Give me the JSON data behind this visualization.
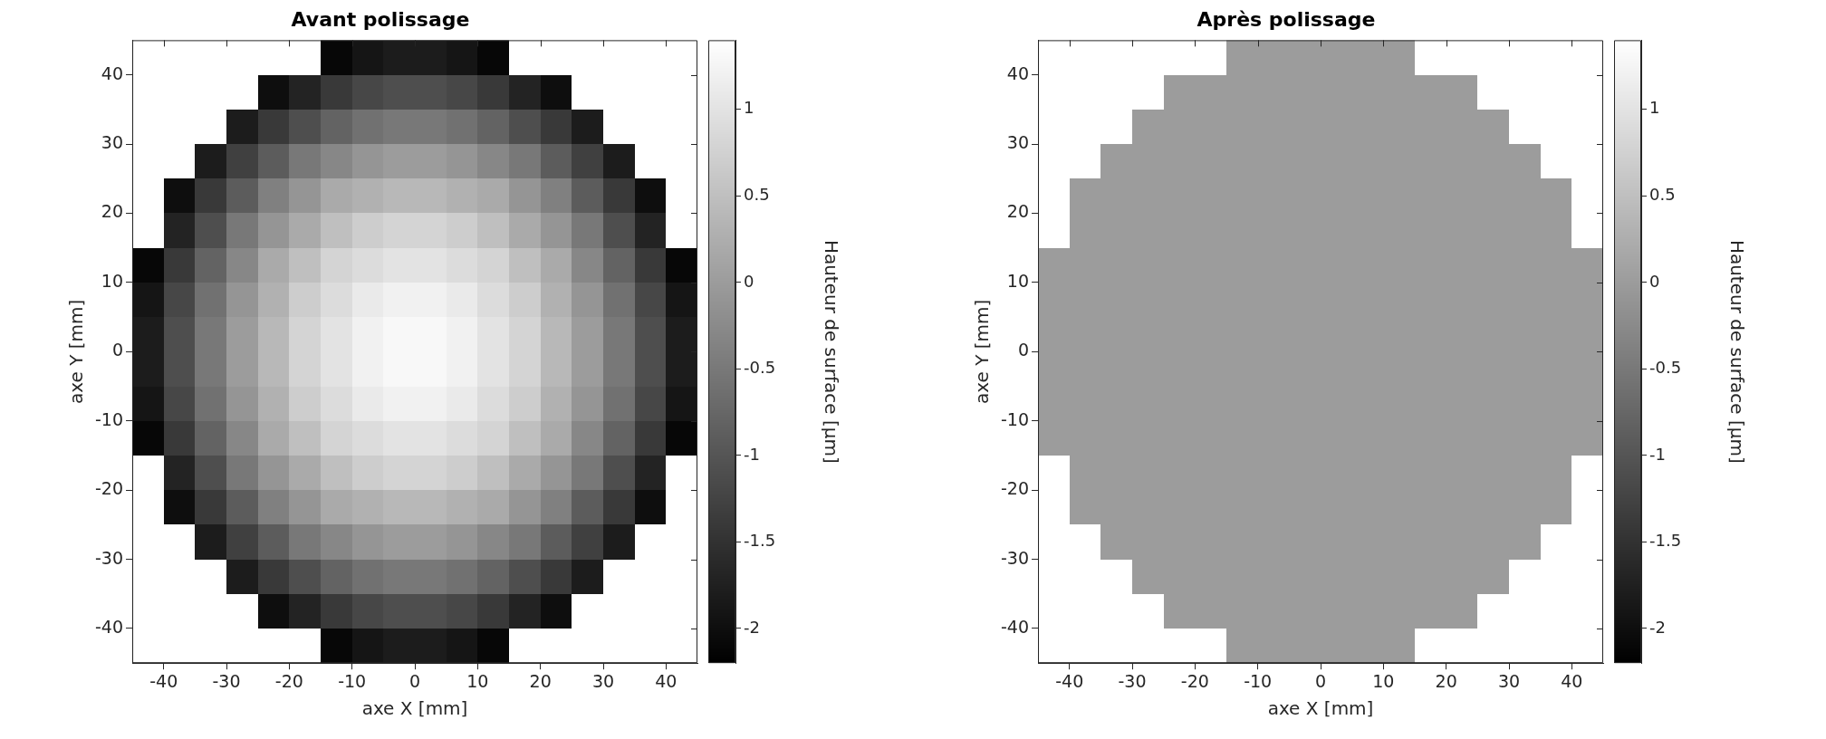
{
  "chart_data": [
    {
      "type": "heatmap",
      "title": "Avant polissage",
      "xlabel": "axe X [mm]",
      "ylabel": "axe Y [mm]",
      "clabel": "Hauteur de surface [µm]",
      "x": [
        -42.5,
        -37.5,
        -32.5,
        -27.5,
        -22.5,
        -17.5,
        -12.5,
        -7.5,
        -2.5,
        2.5,
        7.5,
        12.5,
        17.5,
        22.5,
        27.5,
        32.5,
        37.5,
        42.5
      ],
      "y": [
        42.5,
        37.5,
        32.5,
        27.5,
        22.5,
        17.5,
        12.5,
        7.5,
        2.5,
        -2.5,
        -7.5,
        -12.5,
        -17.5,
        -22.5,
        -27.5,
        -32.5,
        -37.5,
        -42.5
      ],
      "cells": [
        [
          null,
          null,
          null,
          null,
          null,
          null,
          -2.1,
          -1.9,
          -1.8,
          -1.8,
          -1.9,
          -2.1,
          null,
          null,
          null,
          null,
          null,
          null
        ],
        [
          null,
          null,
          null,
          null,
          -2.0,
          -1.7,
          -1.4,
          -1.2,
          -1.1,
          -1.1,
          -1.2,
          -1.4,
          -1.7,
          -2.0,
          null,
          null,
          null,
          null
        ],
        [
          null,
          null,
          null,
          -1.8,
          -1.4,
          -1.1,
          -0.8,
          -0.6,
          -0.5,
          -0.5,
          -0.6,
          -0.8,
          -1.1,
          -1.4,
          -1.8,
          null,
          null,
          null
        ],
        [
          null,
          null,
          -1.8,
          -1.3,
          -0.9,
          -0.5,
          -0.3,
          -0.1,
          0.0,
          0.0,
          -0.1,
          -0.3,
          -0.5,
          -0.9,
          -1.3,
          -1.8,
          null,
          null
        ],
        [
          null,
          -2.0,
          -1.4,
          -0.9,
          -0.4,
          -0.1,
          0.2,
          0.3,
          0.4,
          0.4,
          0.3,
          0.2,
          -0.1,
          -0.4,
          -0.9,
          -1.4,
          -2.0,
          null
        ],
        [
          null,
          -1.7,
          -1.1,
          -0.5,
          -0.1,
          0.2,
          0.5,
          0.7,
          0.8,
          0.8,
          0.7,
          0.5,
          0.2,
          -0.1,
          -0.5,
          -1.1,
          -1.7,
          null
        ],
        [
          -2.1,
          -1.4,
          -0.8,
          -0.3,
          0.2,
          0.5,
          0.8,
          0.9,
          1.0,
          1.0,
          0.9,
          0.8,
          0.5,
          0.2,
          -0.3,
          -0.8,
          -1.4,
          -2.1
        ],
        [
          -1.9,
          -1.2,
          -0.6,
          -0.1,
          0.3,
          0.7,
          0.9,
          1.1,
          1.2,
          1.2,
          1.1,
          0.9,
          0.7,
          0.3,
          -0.1,
          -0.6,
          -1.2,
          -1.9
        ],
        [
          -1.8,
          -1.1,
          -0.5,
          0.0,
          0.4,
          0.8,
          1.0,
          1.2,
          1.3,
          1.3,
          1.2,
          1.0,
          0.8,
          0.4,
          0.0,
          -0.5,
          -1.1,
          -1.8
        ],
        [
          -1.8,
          -1.1,
          -0.5,
          0.0,
          0.4,
          0.8,
          1.0,
          1.2,
          1.3,
          1.3,
          1.2,
          1.0,
          0.8,
          0.4,
          0.0,
          -0.5,
          -1.1,
          -1.8
        ],
        [
          -1.9,
          -1.2,
          -0.6,
          -0.1,
          0.3,
          0.7,
          0.9,
          1.1,
          1.2,
          1.2,
          1.1,
          0.9,
          0.7,
          0.3,
          -0.1,
          -0.6,
          -1.2,
          -1.9
        ],
        [
          -2.1,
          -1.4,
          -0.8,
          -0.3,
          0.2,
          0.5,
          0.8,
          0.9,
          1.0,
          1.0,
          0.9,
          0.8,
          0.5,
          0.2,
          -0.3,
          -0.8,
          -1.4,
          -2.1
        ],
        [
          null,
          -1.7,
          -1.1,
          -0.5,
          -0.1,
          0.2,
          0.5,
          0.7,
          0.8,
          0.8,
          0.7,
          0.5,
          0.2,
          -0.1,
          -0.5,
          -1.1,
          -1.7,
          null
        ],
        [
          null,
          -2.0,
          -1.4,
          -0.9,
          -0.4,
          -0.1,
          0.2,
          0.3,
          0.4,
          0.4,
          0.3,
          0.2,
          -0.1,
          -0.4,
          -0.9,
          -1.4,
          -2.0,
          null
        ],
        [
          null,
          null,
          -1.8,
          -1.3,
          -0.9,
          -0.5,
          -0.3,
          -0.1,
          0.0,
          0.0,
          -0.1,
          -0.3,
          -0.5,
          -0.9,
          -1.3,
          -1.8,
          null,
          null
        ],
        [
          null,
          null,
          null,
          -1.8,
          -1.4,
          -1.1,
          -0.8,
          -0.6,
          -0.5,
          -0.5,
          -0.6,
          -0.8,
          -1.1,
          -1.4,
          -1.8,
          null,
          null,
          null
        ],
        [
          null,
          null,
          null,
          null,
          -2.0,
          -1.7,
          -1.4,
          -1.2,
          -1.1,
          -1.1,
          -1.2,
          -1.4,
          -1.7,
          -2.0,
          null,
          null,
          null,
          null
        ],
        [
          null,
          null,
          null,
          null,
          null,
          null,
          -2.1,
          -1.9,
          -1.8,
          -1.8,
          -1.9,
          -2.1,
          null,
          null,
          null,
          null,
          null,
          null
        ]
      ],
      "xlim": [
        -45,
        45
      ],
      "ylim": [
        -45,
        45
      ],
      "xticks": [
        -40,
        -30,
        -20,
        -10,
        0,
        10,
        20,
        30,
        40
      ],
      "yticks": [
        -40,
        -30,
        -20,
        -10,
        0,
        10,
        20,
        30,
        40
      ],
      "clim": [
        -2.2,
        1.4
      ],
      "cticks": [
        -2,
        -1.5,
        -1,
        -0.5,
        0,
        0.5,
        1
      ]
    },
    {
      "type": "heatmap",
      "title": "Après polissage",
      "xlabel": "axe X [mm]",
      "ylabel": "axe Y [mm]",
      "clabel": "Hauteur de surface [µm]",
      "x": [
        -42.5,
        -37.5,
        -32.5,
        -27.5,
        -22.5,
        -17.5,
        -12.5,
        -7.5,
        -2.5,
        2.5,
        7.5,
        12.5,
        17.5,
        22.5,
        27.5,
        32.5,
        37.5,
        42.5
      ],
      "y": [
        42.5,
        37.5,
        32.5,
        27.5,
        22.5,
        17.5,
        12.5,
        7.5,
        2.5,
        -2.5,
        -7.5,
        -12.5,
        -17.5,
        -22.5,
        -27.5,
        -32.5,
        -37.5,
        -42.5
      ],
      "cells": [
        [
          null,
          null,
          null,
          null,
          null,
          null,
          0.0,
          0.0,
          0.0,
          0.0,
          0.0,
          0.0,
          null,
          null,
          null,
          null,
          null,
          null
        ],
        [
          null,
          null,
          null,
          null,
          0.0,
          0.0,
          0.0,
          0.0,
          0.0,
          0.0,
          0.0,
          0.0,
          0.0,
          0.0,
          null,
          null,
          null,
          null
        ],
        [
          null,
          null,
          null,
          0.0,
          0.0,
          0.0,
          0.0,
          0.0,
          0.0,
          0.0,
          0.0,
          0.0,
          0.0,
          0.0,
          0.0,
          null,
          null,
          null
        ],
        [
          null,
          null,
          0.0,
          0.0,
          0.0,
          0.0,
          0.0,
          0.0,
          0.0,
          0.0,
          0.0,
          0.0,
          0.0,
          0.0,
          0.0,
          0.0,
          null,
          null
        ],
        [
          null,
          0.0,
          0.0,
          0.0,
          0.0,
          0.0,
          0.0,
          0.0,
          0.0,
          0.0,
          0.0,
          0.0,
          0.0,
          0.0,
          0.0,
          0.0,
          0.0,
          null
        ],
        [
          null,
          0.0,
          0.0,
          0.0,
          0.0,
          0.0,
          0.0,
          0.0,
          0.0,
          0.0,
          0.0,
          0.0,
          0.0,
          0.0,
          0.0,
          0.0,
          0.0,
          null
        ],
        [
          0.0,
          0.0,
          0.0,
          0.0,
          0.0,
          0.0,
          0.0,
          0.0,
          0.0,
          0.0,
          0.0,
          0.0,
          0.0,
          0.0,
          0.0,
          0.0,
          0.0,
          0.0
        ],
        [
          0.0,
          0.0,
          0.0,
          0.0,
          0.0,
          0.0,
          0.0,
          0.0,
          0.0,
          0.0,
          0.0,
          0.0,
          0.0,
          0.0,
          0.0,
          0.0,
          0.0,
          0.0
        ],
        [
          0.0,
          0.0,
          0.0,
          0.0,
          0.0,
          0.0,
          0.0,
          0.0,
          0.0,
          0.0,
          0.0,
          0.0,
          0.0,
          0.0,
          0.0,
          0.0,
          0.0,
          0.0
        ],
        [
          0.0,
          0.0,
          0.0,
          0.0,
          0.0,
          0.0,
          0.0,
          0.0,
          0.0,
          0.0,
          0.0,
          0.0,
          0.0,
          0.0,
          0.0,
          0.0,
          0.0,
          0.0
        ],
        [
          0.0,
          0.0,
          0.0,
          0.0,
          0.0,
          0.0,
          0.0,
          0.0,
          0.0,
          0.0,
          0.0,
          0.0,
          0.0,
          0.0,
          0.0,
          0.0,
          0.0,
          0.0
        ],
        [
          0.0,
          0.0,
          0.0,
          0.0,
          0.0,
          0.0,
          0.0,
          0.0,
          0.0,
          0.0,
          0.0,
          0.0,
          0.0,
          0.0,
          0.0,
          0.0,
          0.0,
          0.0
        ],
        [
          null,
          0.0,
          0.0,
          0.0,
          0.0,
          0.0,
          0.0,
          0.0,
          0.0,
          0.0,
          0.0,
          0.0,
          0.0,
          0.0,
          0.0,
          0.0,
          0.0,
          null
        ],
        [
          null,
          0.0,
          0.0,
          0.0,
          0.0,
          0.0,
          0.0,
          0.0,
          0.0,
          0.0,
          0.0,
          0.0,
          0.0,
          0.0,
          0.0,
          0.0,
          0.0,
          null
        ],
        [
          null,
          null,
          0.0,
          0.0,
          0.0,
          0.0,
          0.0,
          0.0,
          0.0,
          0.0,
          0.0,
          0.0,
          0.0,
          0.0,
          0.0,
          0.0,
          null,
          null
        ],
        [
          null,
          null,
          null,
          0.0,
          0.0,
          0.0,
          0.0,
          0.0,
          0.0,
          0.0,
          0.0,
          0.0,
          0.0,
          0.0,
          0.0,
          null,
          null,
          null
        ],
        [
          null,
          null,
          null,
          null,
          0.0,
          0.0,
          0.0,
          0.0,
          0.0,
          0.0,
          0.0,
          0.0,
          0.0,
          0.0,
          null,
          null,
          null,
          null
        ],
        [
          null,
          null,
          null,
          null,
          null,
          null,
          0.0,
          0.0,
          0.0,
          0.0,
          0.0,
          0.0,
          null,
          null,
          null,
          null,
          null,
          null
        ]
      ],
      "xlim": [
        -45,
        45
      ],
      "ylim": [
        -45,
        45
      ],
      "xticks": [
        -40,
        -30,
        -20,
        -10,
        0,
        10,
        20,
        30,
        40
      ],
      "yticks": [
        -40,
        -30,
        -20,
        -10,
        0,
        10,
        20,
        30,
        40
      ],
      "clim": [
        -2.2,
        1.4
      ],
      "cticks": [
        -2,
        -1.5,
        -1,
        -0.5,
        0,
        0.5,
        1
      ]
    }
  ]
}
